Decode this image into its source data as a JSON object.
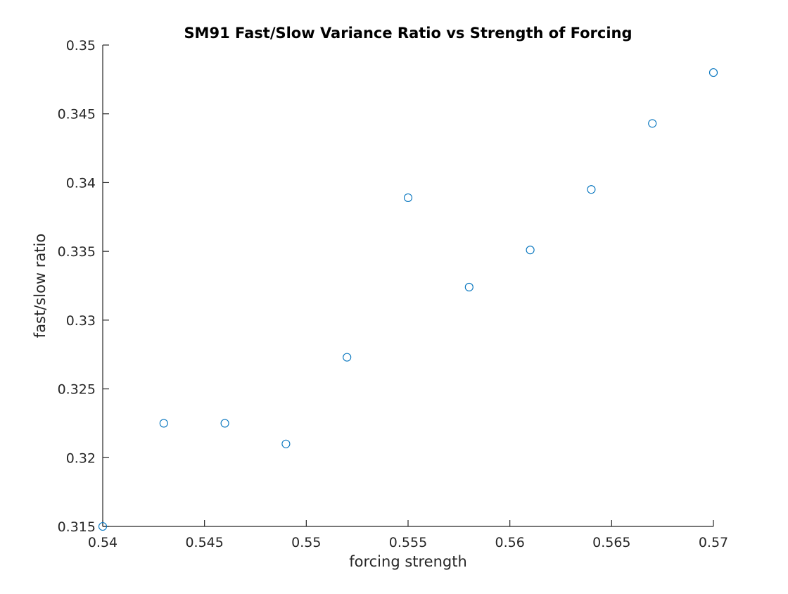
{
  "chart_data": {
    "type": "scatter",
    "title": "SM91 Fast/Slow Variance Ratio vs Strength of Forcing",
    "xlabel": "forcing strength",
    "ylabel": "fast/slow ratio",
    "xlim": [
      0.54,
      0.57
    ],
    "ylim": [
      0.315,
      0.35
    ],
    "xticks": [
      0.54,
      0.545,
      0.55,
      0.555,
      0.56,
      0.565,
      0.57
    ],
    "xtick_labels": [
      "0.54",
      "0.545",
      "0.55",
      "0.555",
      "0.56",
      "0.565",
      "0.57"
    ],
    "yticks": [
      0.315,
      0.32,
      0.325,
      0.33,
      0.335,
      0.34,
      0.345,
      0.35
    ],
    "ytick_labels": [
      "0.315",
      "0.32",
      "0.325",
      "0.33",
      "0.335",
      "0.34",
      "0.345",
      "0.35"
    ],
    "grid": false,
    "marker": "open-circle",
    "marker_color": "#0072BD",
    "points": [
      {
        "x": 0.54,
        "y": 0.315
      },
      {
        "x": 0.543,
        "y": 0.3225
      },
      {
        "x": 0.546,
        "y": 0.3225
      },
      {
        "x": 0.549,
        "y": 0.321
      },
      {
        "x": 0.552,
        "y": 0.3273
      },
      {
        "x": 0.555,
        "y": 0.3389
      },
      {
        "x": 0.558,
        "y": 0.3324
      },
      {
        "x": 0.561,
        "y": 0.3351
      },
      {
        "x": 0.564,
        "y": 0.3395
      },
      {
        "x": 0.567,
        "y": 0.3443
      },
      {
        "x": 0.57,
        "y": 0.348
      }
    ]
  },
  "colors": {
    "axis": "#262626",
    "background": "#ffffff"
  }
}
